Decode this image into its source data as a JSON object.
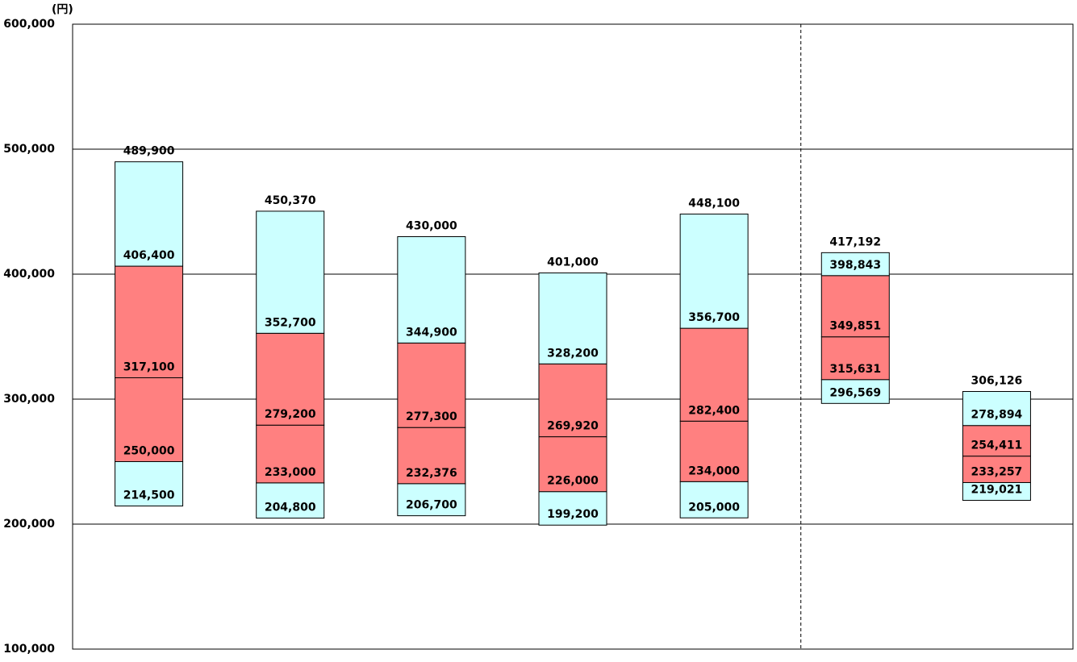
{
  "chart_data": {
    "type": "box",
    "unit_label": "(円)",
    "ylim": [
      100000,
      600000
    ],
    "yticks": [
      {
        "value": 100000,
        "label": "100,000"
      },
      {
        "value": 200000,
        "label": "200,000"
      },
      {
        "value": 300000,
        "label": "300,000"
      },
      {
        "value": 400000,
        "label": "400,000"
      },
      {
        "value": 500000,
        "label": "500,000"
      },
      {
        "value": 600000,
        "label": "600,000"
      }
    ],
    "grid": true,
    "outer_color": "#ccffff",
    "inner_color": "#ff8080",
    "boxes": [
      {
        "values": [
          214500,
          250000,
          317100,
          406400,
          489900
        ],
        "value_labels": [
          "214,500",
          "250,000",
          "317,100",
          "406,400",
          "489,900"
        ]
      },
      {
        "values": [
          204800,
          233000,
          279200,
          352700,
          450370
        ],
        "value_labels": [
          "204,800",
          "233,000",
          "279,200",
          "352,700",
          "450,370"
        ]
      },
      {
        "values": [
          206700,
          232376,
          277300,
          344900,
          430000
        ],
        "value_labels": [
          "206,700",
          "232,376",
          "277,300",
          "344,900",
          "430,000"
        ]
      },
      {
        "values": [
          199200,
          226000,
          269920,
          328200,
          401000
        ],
        "value_labels": [
          "199,200",
          "226,000",
          "269,920",
          "328,200",
          "401,000"
        ]
      },
      {
        "values": [
          205000,
          234000,
          282400,
          356700,
          448100
        ],
        "value_labels": [
          "205,000",
          "234,000",
          "282,400",
          "356,700",
          "448,100"
        ]
      },
      {
        "values": [
          296569,
          315631,
          349851,
          398843,
          417192
        ],
        "value_labels": [
          "296,569",
          "315,631",
          "349,851",
          "398,843",
          "417,192"
        ]
      },
      {
        "values": [
          219021,
          233257,
          254411,
          278894,
          306126
        ],
        "value_labels": [
          "219,021",
          "233,257",
          "254,411",
          "278,894",
          "306,126"
        ]
      }
    ]
  }
}
